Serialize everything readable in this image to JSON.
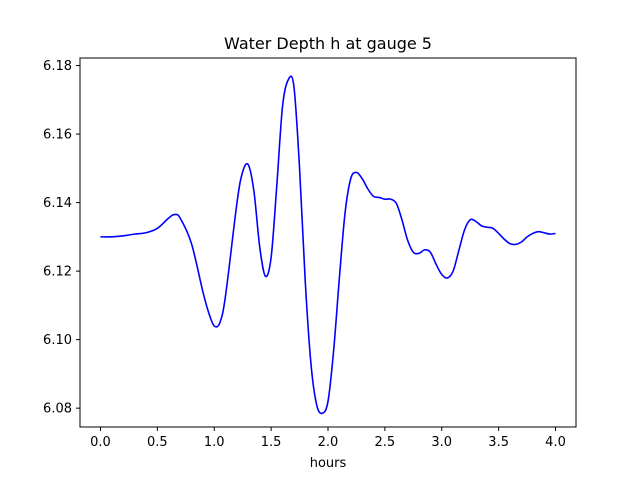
{
  "chart_data": {
    "type": "line",
    "title": "Water Depth h at gauge 5",
    "xlabel": "hours",
    "ylabel": "",
    "xlim": [
      -0.18,
      4.18
    ],
    "ylim": [
      6.0745,
      6.1822
    ],
    "xticks": [
      0.0,
      0.5,
      1.0,
      1.5,
      2.0,
      2.5,
      3.0,
      3.5,
      4.0
    ],
    "xtick_labels": [
      "0.0",
      "0.5",
      "1.0",
      "1.5",
      "2.0",
      "2.5",
      "3.0",
      "3.5",
      "4.0"
    ],
    "yticks": [
      6.08,
      6.1,
      6.12,
      6.14,
      6.16,
      6.18
    ],
    "ytick_labels": [
      "6.08",
      "6.10",
      "6.12",
      "6.14",
      "6.16",
      "6.18"
    ],
    "grid": false,
    "series": [
      {
        "color": "#0000ff",
        "x": [
          0.0,
          0.1,
          0.2,
          0.3,
          0.4,
          0.5,
          0.6,
          0.65,
          0.7,
          0.8,
          0.9,
          0.95,
          1.0,
          1.05,
          1.1,
          1.2,
          1.25,
          1.3,
          1.35,
          1.4,
          1.45,
          1.5,
          1.55,
          1.6,
          1.65,
          1.7,
          1.75,
          1.8,
          1.85,
          1.9,
          1.95,
          2.0,
          2.05,
          2.1,
          2.15,
          2.2,
          2.25,
          2.3,
          2.35,
          2.4,
          2.45,
          2.5,
          2.55,
          2.6,
          2.65,
          2.7,
          2.75,
          2.8,
          2.85,
          2.9,
          2.95,
          3.0,
          3.05,
          3.1,
          3.15,
          3.2,
          3.25,
          3.3,
          3.35,
          3.4,
          3.45,
          3.5,
          3.55,
          3.6,
          3.65,
          3.7,
          3.75,
          3.8,
          3.85,
          3.9,
          3.95,
          4.0
        ],
        "values": [
          6.13,
          6.13,
          6.1303,
          6.1308,
          6.1312,
          6.1325,
          6.1355,
          6.1365,
          6.1355,
          6.128,
          6.114,
          6.108,
          6.104,
          6.105,
          6.113,
          6.14,
          6.149,
          6.151,
          6.143,
          6.127,
          6.1185,
          6.124,
          6.145,
          6.168,
          6.1758,
          6.174,
          6.15,
          6.117,
          6.093,
          6.081,
          6.0785,
          6.082,
          6.097,
          6.118,
          6.137,
          6.147,
          6.1488,
          6.147,
          6.144,
          6.1418,
          6.1415,
          6.141,
          6.141,
          6.1398,
          6.135,
          6.129,
          6.1255,
          6.1252,
          6.1262,
          6.1255,
          6.122,
          6.119,
          6.118,
          6.12,
          6.126,
          6.132,
          6.135,
          6.1345,
          6.1332,
          6.1328,
          6.1325,
          6.131,
          6.1293,
          6.128,
          6.1278,
          6.1285,
          6.13,
          6.131,
          6.1315,
          6.1312,
          6.1308,
          6.131
        ]
      }
    ]
  }
}
